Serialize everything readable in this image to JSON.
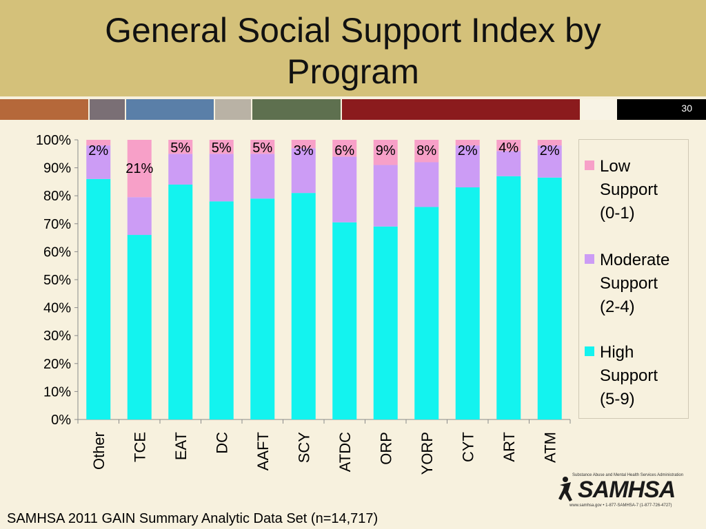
{
  "slide": {
    "title": "General Social Support Index by Program",
    "number": "30",
    "footer": "SAMHSA 2011 GAIN Summary Analytic Data Set (n=14,717)",
    "stripe_colors": [
      "#b5683a",
      "#7a6f75",
      "#5a7fa8",
      "#b9b2a5",
      "#5e704f",
      "#8b1b1d",
      "#f8f3e5",
      "#000000"
    ]
  },
  "logo": {
    "wordmark": "SAMHSA",
    "tagline": "Substance Abuse and Mental Health Services Administration",
    "contact": "www.samhsa.gov • 1-877-SAMHSA-7 (1-877-726-4727)"
  },
  "chart_data": {
    "type": "bar",
    "stacked": true,
    "categories": [
      "Other",
      "TCE",
      "EAT",
      "DC",
      "AAFT",
      "SCY",
      "ATDC",
      "ORP",
      "YORP",
      "CYT",
      "ART",
      "ATM"
    ],
    "series": [
      {
        "name": "High Support (5-9)",
        "color": "#13f3ef",
        "values": [
          86,
          66,
          84,
          78,
          79,
          81,
          70.5,
          69,
          76,
          83,
          87,
          86.5
        ]
      },
      {
        "name": "Moderate Support (2-4)",
        "color": "#cc9cf5",
        "values": [
          12,
          13.5,
          11,
          17,
          16,
          16,
          23.5,
          22,
          16,
          15,
          9,
          11.5
        ]
      },
      {
        "name": "Low Support (0-1)",
        "color": "#f7a0c8",
        "values": [
          2,
          20.5,
          5,
          5,
          5,
          3,
          6,
          9,
          8,
          2,
          4,
          2
        ]
      }
    ],
    "data_labels": [
      "2%",
      "21%",
      "5%",
      "5%",
      "5%",
      "3%",
      "6%",
      "9%",
      "8%",
      "2%",
      "4%",
      "2%"
    ],
    "y_ticks": [
      "0%",
      "10%",
      "20%",
      "30%",
      "40%",
      "50%",
      "60%",
      "70%",
      "80%",
      "90%",
      "100%"
    ],
    "ylim": [
      0,
      100
    ],
    "legend": {
      "position": "right",
      "entries": [
        {
          "label": "Low Support (0-1)",
          "lines": [
            "Low",
            "Support",
            "(0-1)"
          ],
          "color": "#f7a0c8"
        },
        {
          "label": "Moderate Support (2-4)",
          "lines": [
            "Moderate",
            "Support",
            "(2-4)"
          ],
          "color": "#cc9cf5"
        },
        {
          "label": "High Support (5-9)",
          "lines": [
            "High",
            "Support",
            "(5-9)"
          ],
          "color": "#13f3ef"
        }
      ]
    }
  }
}
